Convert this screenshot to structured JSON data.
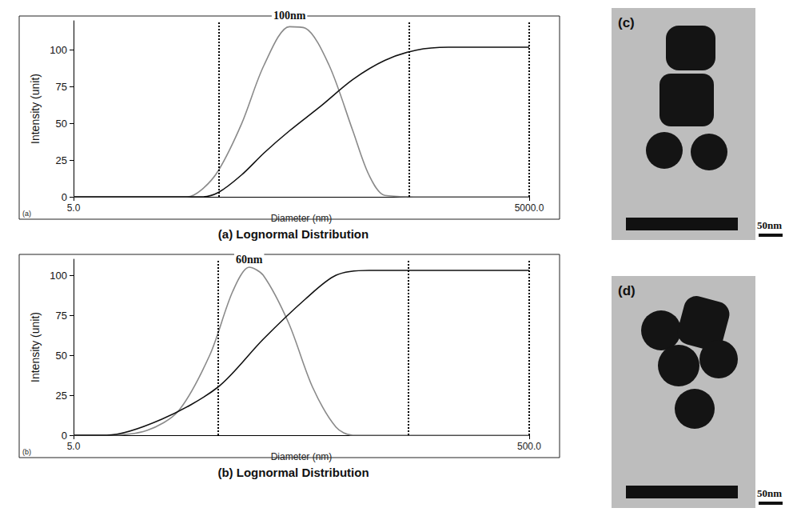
{
  "chart_data": [
    {
      "type": "line",
      "title": "(a) Lognormal Distribution",
      "panel_label": "(a)",
      "xlabel": "Diameter (nm)",
      "ylabel": "Intensity (unit)",
      "log": "x",
      "grid": false,
      "xlim": [
        5,
        5000
      ],
      "xticks": [
        {
          "value": 5,
          "label": "5.0"
        },
        {
          "value": 5000,
          "label": "5000.0"
        }
      ],
      "ylim": [
        0,
        120
      ],
      "yticks": [
        0,
        25,
        50,
        75,
        100
      ],
      "vlines": [
        45,
        811,
        5000
      ],
      "annotations": [
        {
          "text": "100nm",
          "x": 132,
          "y": 118
        }
      ],
      "series": [
        {
          "color": "#8a8a8a",
          "x": [
            5,
            20,
            28,
            35,
            45,
            64,
            90,
            132,
            168,
            240,
            345,
            440,
            560,
            1000,
            5000
          ],
          "values": [
            0,
            0,
            0,
            5,
            18,
            50,
            90,
            116,
            115,
            90,
            45,
            15,
            1,
            0,
            0
          ]
        },
        {
          "color": "#111111",
          "x": [
            5,
            35,
            45,
            64,
            90,
            132,
            213,
            345,
            560,
            900,
            1470,
            5000
          ],
          "values": [
            0,
            0,
            3,
            15,
            30,
            45,
            62,
            80,
            93,
            100,
            102,
            102
          ]
        }
      ]
    },
    {
      "type": "line",
      "title": "(b) Lognormal Distribution",
      "panel_label": "(b)",
      "xlabel": "Diameter (nm)",
      "ylabel": "Intensity (unit)",
      "log": "x",
      "grid": false,
      "xlim": [
        5,
        500
      ],
      "xticks": [
        {
          "value": 5,
          "label": "5.0"
        },
        {
          "value": 500,
          "label": "500.0"
        }
      ],
      "ylim": [
        0,
        110
      ],
      "yticks": [
        0,
        25,
        50,
        75,
        100
      ],
      "vlines": [
        21.5,
        147,
        500
      ],
      "annotations": [
        {
          "text": "60nm",
          "x": 29.5,
          "y": 105
        }
      ],
      "series": [
        {
          "color": "#8a8a8a",
          "x": [
            5,
            7,
            10.5,
            14.4,
            19.8,
            25,
            29.5,
            34,
            44,
            56,
            71,
            84,
            500
          ],
          "values": [
            0,
            0,
            3,
            15,
            50,
            90,
            105,
            100,
            70,
            30,
            5,
            0,
            0
          ]
        },
        {
          "color": "#111111",
          "x": [
            5,
            7,
            12.2,
            21.5,
            34,
            52,
            71,
            99,
            500
          ],
          "values": [
            0,
            0,
            10,
            30,
            60,
            85,
            100,
            103,
            103
          ]
        }
      ]
    }
  ],
  "images": [
    {
      "label": "(c)",
      "scale_bar": "50nm"
    },
    {
      "label": "(d)",
      "scale_bar": "50nm"
    }
  ]
}
